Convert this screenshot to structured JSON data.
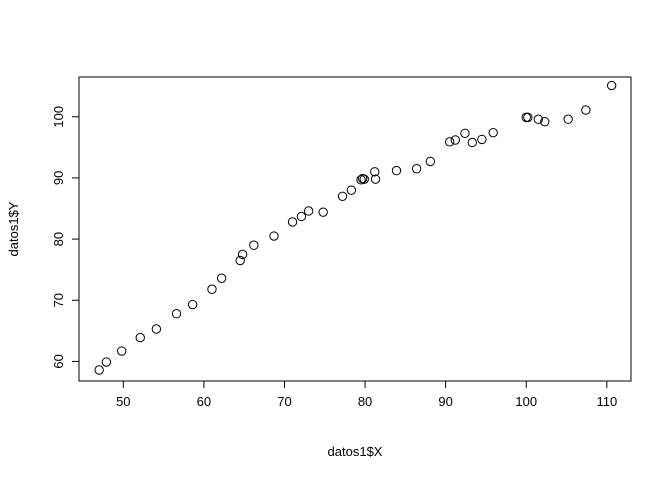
{
  "chart_data": {
    "type": "scatter",
    "title": "",
    "xlabel": "datos1$X",
    "ylabel": "datos1$Y",
    "xlim": [
      44.5,
      113
    ],
    "ylim": [
      56.8,
      106.5
    ],
    "x_ticks": [
      50,
      60,
      70,
      80,
      90,
      100,
      110
    ],
    "y_ticks": [
      60,
      70,
      80,
      90,
      100
    ],
    "grid": false,
    "legend": "none",
    "marker": "open-circle",
    "color": "#000000",
    "points": [
      {
        "x": 47.0,
        "y": 58.6
      },
      {
        "x": 47.9,
        "y": 59.9
      },
      {
        "x": 49.8,
        "y": 61.7
      },
      {
        "x": 52.1,
        "y": 63.9
      },
      {
        "x": 54.1,
        "y": 65.3
      },
      {
        "x": 56.6,
        "y": 67.8
      },
      {
        "x": 58.6,
        "y": 69.3
      },
      {
        "x": 61.0,
        "y": 71.8
      },
      {
        "x": 62.2,
        "y": 73.6
      },
      {
        "x": 64.5,
        "y": 76.5
      },
      {
        "x": 64.8,
        "y": 77.5
      },
      {
        "x": 66.2,
        "y": 79.0
      },
      {
        "x": 68.7,
        "y": 80.5
      },
      {
        "x": 71.0,
        "y": 82.8
      },
      {
        "x": 72.1,
        "y": 83.7
      },
      {
        "x": 73.0,
        "y": 84.6
      },
      {
        "x": 74.8,
        "y": 84.4
      },
      {
        "x": 77.2,
        "y": 87.0
      },
      {
        "x": 78.3,
        "y": 88.0
      },
      {
        "x": 79.5,
        "y": 89.7
      },
      {
        "x": 79.7,
        "y": 89.9
      },
      {
        "x": 79.9,
        "y": 89.8
      },
      {
        "x": 81.2,
        "y": 91.0
      },
      {
        "x": 81.3,
        "y": 89.8
      },
      {
        "x": 83.9,
        "y": 91.2
      },
      {
        "x": 86.4,
        "y": 91.5
      },
      {
        "x": 88.1,
        "y": 92.7
      },
      {
        "x": 90.5,
        "y": 95.9
      },
      {
        "x": 91.2,
        "y": 96.2
      },
      {
        "x": 92.4,
        "y": 97.3
      },
      {
        "x": 93.3,
        "y": 95.8
      },
      {
        "x": 94.5,
        "y": 96.3
      },
      {
        "x": 95.9,
        "y": 97.4
      },
      {
        "x": 100.0,
        "y": 99.9
      },
      {
        "x": 100.2,
        "y": 99.9
      },
      {
        "x": 101.5,
        "y": 99.6
      },
      {
        "x": 102.3,
        "y": 99.2
      },
      {
        "x": 105.2,
        "y": 99.6
      },
      {
        "x": 107.4,
        "y": 101.1
      },
      {
        "x": 110.6,
        "y": 105.1
      }
    ]
  }
}
